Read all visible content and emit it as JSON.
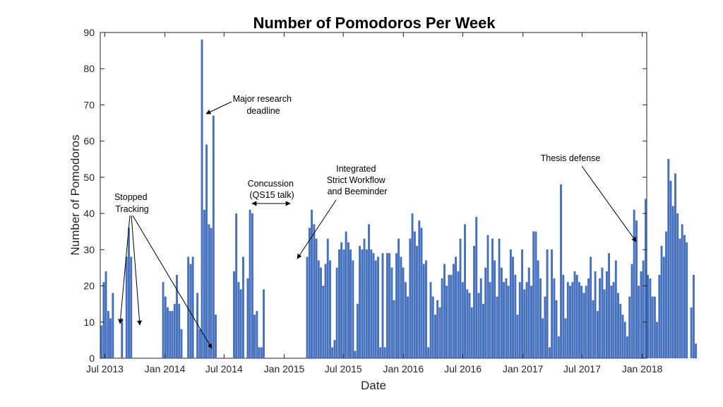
{
  "chart_data": {
    "type": "bar",
    "title": "Number of Pomodoros Per Week",
    "xlabel": "Date",
    "ylabel": "Number of Pomodoros",
    "ylim": [
      0,
      90
    ],
    "yticks": [
      0,
      10,
      20,
      30,
      40,
      50,
      60,
      70,
      80,
      90
    ],
    "xlim": [
      "2013-06-17",
      "2018-01-15"
    ],
    "xticks": [
      {
        "date": "2013-07-01",
        "label": "Jul 2013"
      },
      {
        "date": "2014-01-01",
        "label": "Jan 2014"
      },
      {
        "date": "2014-07-01",
        "label": "Jul 2014"
      },
      {
        "date": "2015-01-01",
        "label": "Jan 2015"
      },
      {
        "date": "2015-07-01",
        "label": "Jul 2015"
      },
      {
        "date": "2016-01-01",
        "label": "Jan 2016"
      },
      {
        "date": "2016-07-01",
        "label": "Jul 2016"
      },
      {
        "date": "2017-01-01",
        "label": "Jan 2017"
      },
      {
        "date": "2017-07-01",
        "label": "Jul 2017"
      },
      {
        "date": "2018-01-01",
        "label": "Jan 2018"
      }
    ],
    "grid": false,
    "bar_color": "#4472C4",
    "series": [
      {
        "start_week": "2013-06-17",
        "values": [
          9,
          21,
          24,
          13,
          11,
          18,
          0,
          0,
          0,
          11,
          0,
          28,
          36,
          28,
          0,
          0,
          0,
          0,
          0,
          0,
          0,
          0,
          0,
          0,
          0,
          0,
          0,
          21,
          17,
          14,
          13,
          13,
          15,
          23,
          15,
          8,
          0,
          0,
          28,
          26,
          28,
          0,
          18,
          8,
          88,
          41,
          59,
          37,
          36,
          67,
          12,
          0,
          0,
          0,
          0,
          0,
          0,
          0,
          24,
          40,
          21,
          19,
          28,
          0,
          22,
          41,
          40,
          12,
          13,
          3,
          3,
          19,
          0,
          0,
          0,
          0,
          0,
          0,
          0,
          0,
          0,
          0,
          0,
          0,
          0,
          0,
          0,
          0,
          0,
          0,
          28,
          36,
          41,
          37,
          33,
          27,
          25,
          20,
          26,
          33,
          27,
          3,
          5,
          25,
          30,
          32,
          30,
          35,
          32,
          30,
          27,
          2,
          15,
          31,
          30,
          33,
          30,
          37,
          30,
          29,
          27,
          28,
          3,
          29,
          3,
          29,
          29,
          25,
          16,
          29,
          33,
          28,
          25,
          21,
          17,
          33,
          40,
          35,
          31,
          38,
          36,
          26,
          27,
          3,
          21,
          17,
          12,
          16,
          14,
          22,
          26,
          20,
          23,
          23,
          26,
          28,
          24,
          33,
          21,
          37,
          19,
          18,
          14,
          31,
          39,
          18,
          22,
          15,
          25,
          34,
          21,
          33,
          27,
          17,
          33,
          25,
          21,
          22,
          20,
          30,
          28,
          23,
          12,
          21,
          30,
          19,
          21,
          25,
          20,
          35,
          35,
          27,
          22,
          11,
          17,
          30,
          3,
          30,
          22,
          16,
          6,
          48,
          23,
          11,
          21,
          20,
          21,
          24,
          23,
          21,
          20,
          18,
          20,
          22,
          28,
          16,
          24,
          13,
          22,
          25,
          19,
          24,
          29,
          20,
          21,
          27,
          18,
          15,
          12,
          10,
          6,
          17,
          26,
          41,
          38,
          20,
          24,
          27,
          44,
          23,
          22,
          17,
          17,
          10,
          23,
          31,
          28,
          35,
          55,
          49,
          42,
          51,
          40,
          33,
          37,
          34,
          32,
          0,
          14,
          23,
          4
        ]
      }
    ],
    "annotations": [
      {
        "lines": [
          "Stopped",
          "Tracking"
        ]
      },
      {
        "lines": [
          "Major research",
          "deadline"
        ]
      },
      {
        "lines": [
          "Concussion",
          "(QS15 talk)"
        ]
      },
      {
        "lines": [
          "Integrated",
          "Strict Workflow",
          "and Beeminder"
        ]
      },
      {
        "lines": [
          "Thesis defense"
        ]
      }
    ]
  }
}
